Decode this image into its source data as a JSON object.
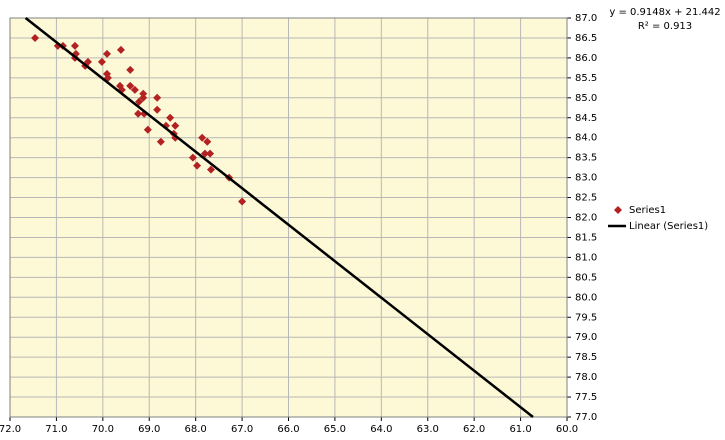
{
  "chart_data": {
    "type": "scatter",
    "series": [
      {
        "name": "Series1",
        "color": "#b22222",
        "x": [
          71.46,
          70.97,
          70.86,
          70.6,
          70.58,
          70.6,
          70.32,
          70.38,
          70.02,
          69.91,
          69.91,
          69.89,
          69.61,
          69.63,
          69.59,
          69.41,
          69.41,
          69.31,
          69.13,
          69.22,
          69.13,
          68.83,
          69.24,
          69.11,
          69.03,
          68.83,
          68.75,
          68.64,
          68.55,
          68.44,
          68.47,
          68.44,
          68.06,
          67.97,
          67.86,
          67.75,
          67.8,
          67.69,
          67.67,
          67.28,
          67.0
        ],
        "values": [
          86.5,
          86.3,
          86.3,
          86.3,
          86.1,
          86.0,
          85.9,
          85.8,
          85.9,
          86.1,
          85.6,
          85.5,
          86.2,
          85.3,
          85.2,
          85.7,
          85.3,
          85.2,
          85.0,
          84.9,
          85.1,
          85.0,
          84.6,
          84.6,
          84.2,
          84.7,
          83.9,
          84.3,
          84.5,
          84.3,
          84.1,
          84.0,
          83.5,
          83.3,
          84.0,
          83.9,
          83.6,
          83.6,
          83.2,
          83.0,
          82.4
        ]
      }
    ],
    "trendline": {
      "name": "Linear (Series1)",
      "slope": 0.9148,
      "intercept": 21.442,
      "color": "#000000"
    },
    "equation": "y = 0.9148x + 21.442",
    "r_squared": "R² = 0.913",
    "xlim": [
      72,
      60
    ],
    "xticks": [
      {
        "value": 72,
        "label": "72.0"
      },
      {
        "value": 71,
        "label": "71.0"
      },
      {
        "value": 70,
        "label": "70.0"
      },
      {
        "value": 69,
        "label": "69.0"
      },
      {
        "value": 68,
        "label": "68.0"
      },
      {
        "value": 67,
        "label": "67.0"
      },
      {
        "value": 66,
        "label": "66.0"
      },
      {
        "value": 65,
        "label": "65.0"
      },
      {
        "value": 64,
        "label": "64.0"
      },
      {
        "value": 63,
        "label": "63.0"
      },
      {
        "value": 62,
        "label": "62.0"
      },
      {
        "value": 61,
        "label": "61.0"
      },
      {
        "value": 60,
        "label": "60.0"
      }
    ],
    "ylim": [
      77,
      87
    ],
    "yticks": [
      {
        "value": 77,
        "label": "77.0"
      },
      {
        "value": 77.5,
        "label": "77.5"
      },
      {
        "value": 78,
        "label": "78.0"
      },
      {
        "value": 78.5,
        "label": "78.5"
      },
      {
        "value": 79,
        "label": "79.0"
      },
      {
        "value": 79.5,
        "label": "79.5"
      },
      {
        "value": 80,
        "label": "80.0"
      },
      {
        "value": 80.5,
        "label": "80.5"
      },
      {
        "value": 81,
        "label": "81.0"
      },
      {
        "value": 81.5,
        "label": "81.5"
      },
      {
        "value": 82,
        "label": "82.0"
      },
      {
        "value": 82.5,
        "label": "82.5"
      },
      {
        "value": 83,
        "label": "83.0"
      },
      {
        "value": 83.5,
        "label": "83.5"
      },
      {
        "value": 84,
        "label": "84.0"
      },
      {
        "value": 84.5,
        "label": "84.5"
      },
      {
        "value": 85,
        "label": "85.0"
      },
      {
        "value": 85.5,
        "label": "85.5"
      },
      {
        "value": 86,
        "label": "86.0"
      },
      {
        "value": 86.5,
        "label": "86.5"
      },
      {
        "value": 87,
        "label": "87.0"
      }
    ],
    "grid": true,
    "y_axis_side": "right",
    "legend": "right"
  }
}
